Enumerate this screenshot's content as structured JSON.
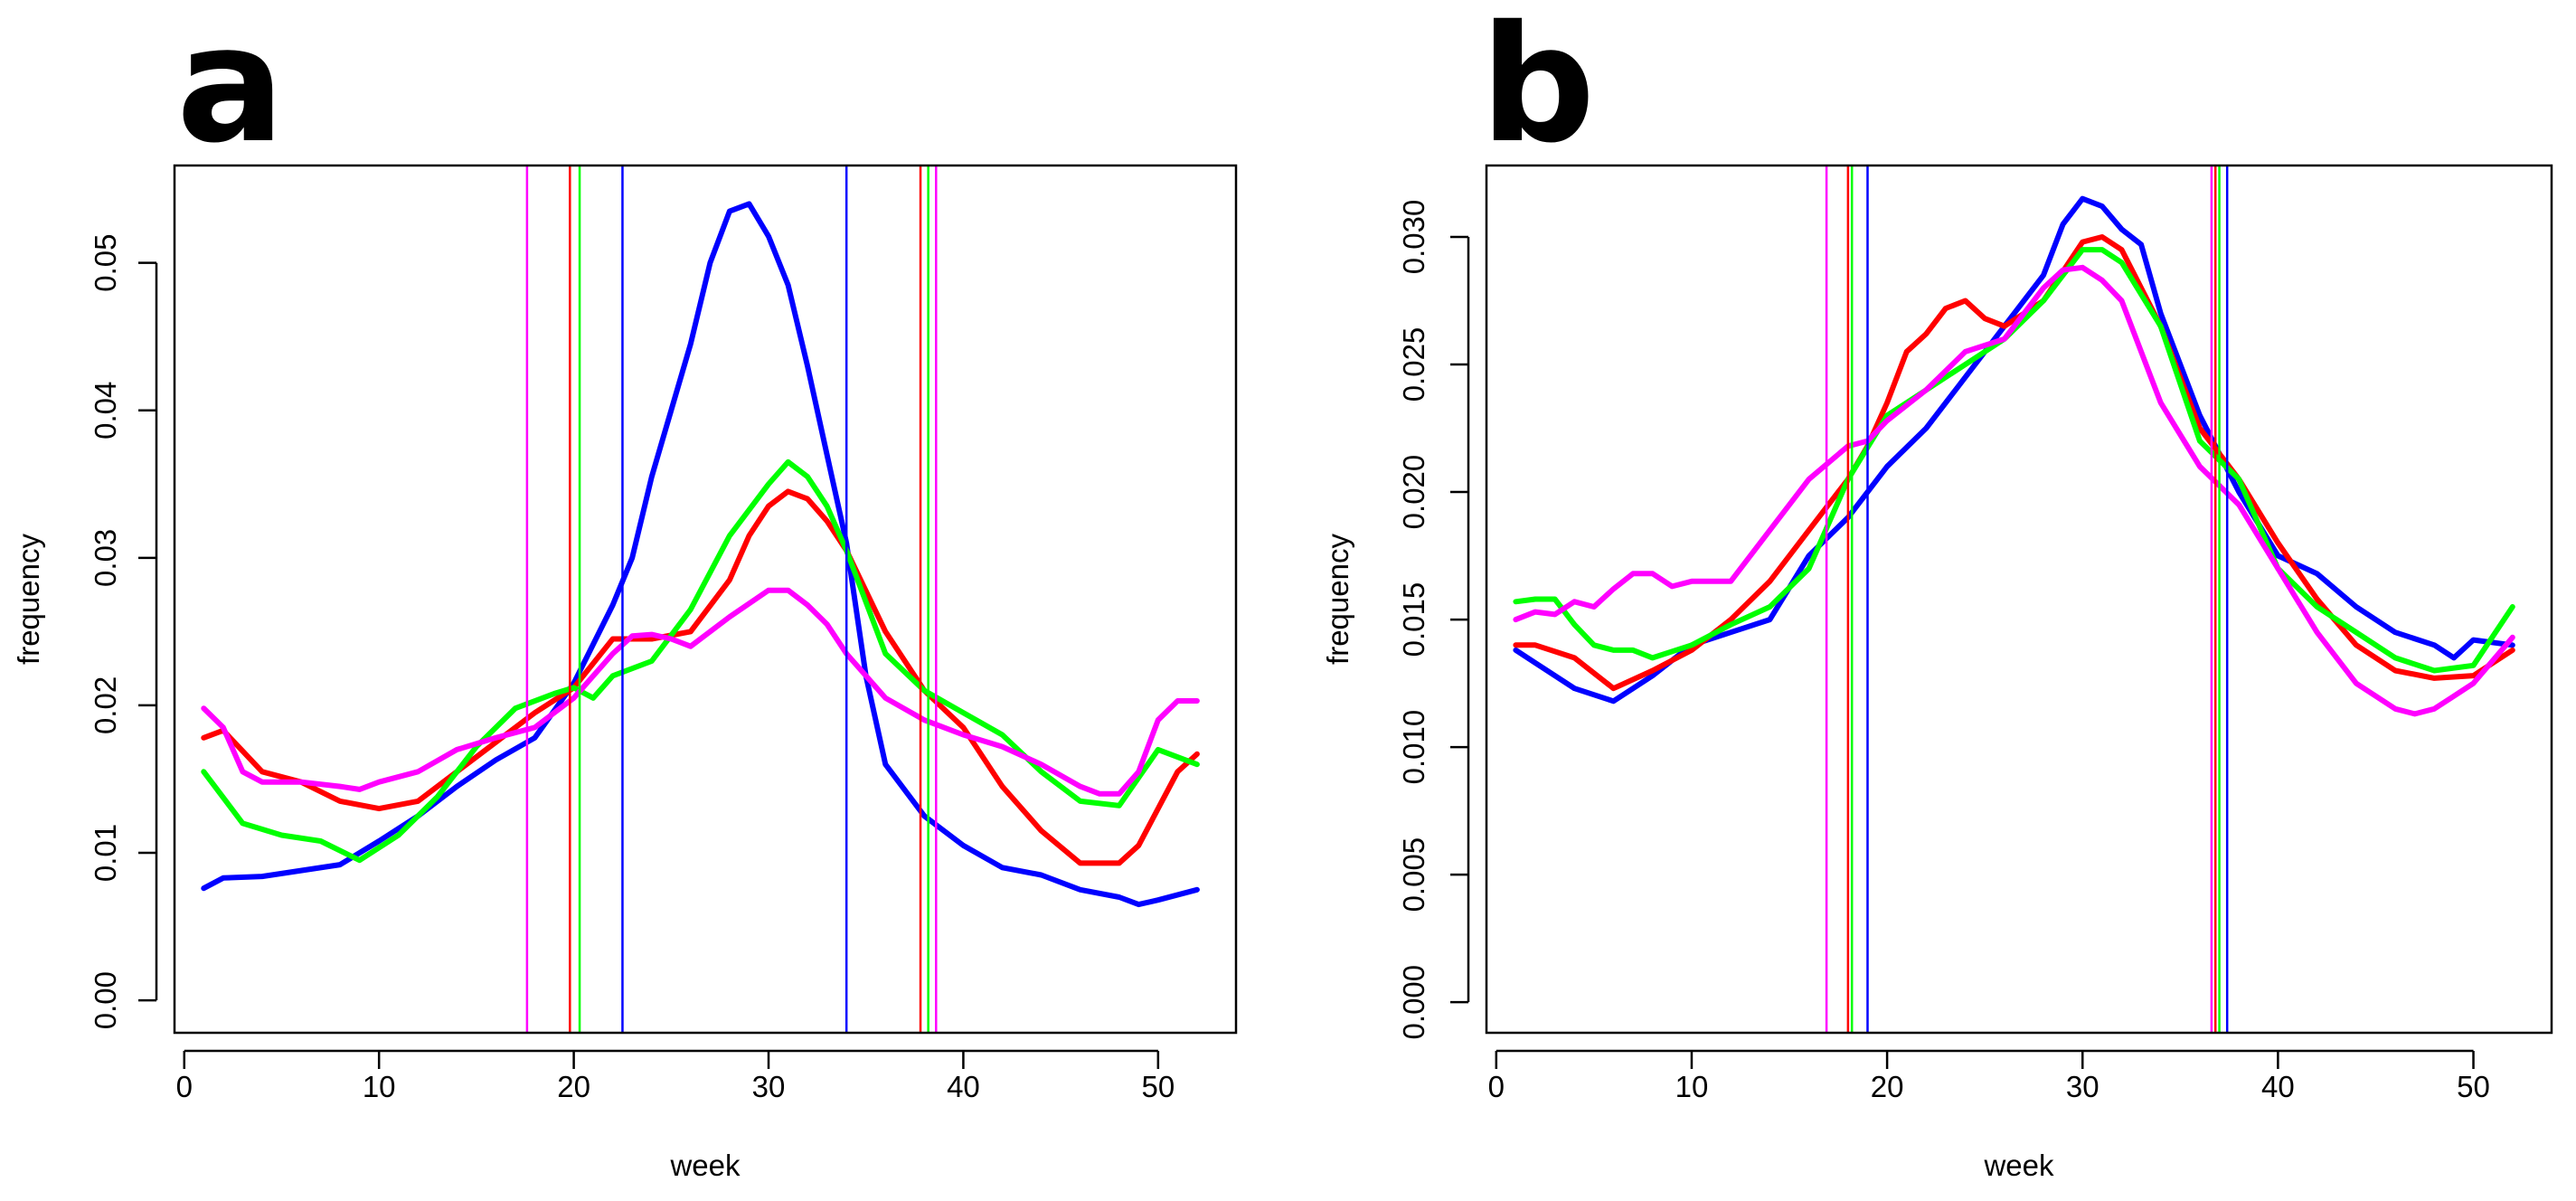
{
  "colors": {
    "blue": "#0000ff",
    "red": "#ff0000",
    "green": "#00ff00",
    "magenta": "#ff00ff"
  },
  "chart_data": [
    {
      "panel": "a",
      "type": "line",
      "xlabel": "week",
      "ylabel": "frequency",
      "xlim": [
        -0.5,
        54.0
      ],
      "ylim": [
        -0.0022,
        0.0566
      ],
      "xticks": [
        0,
        10,
        20,
        30,
        40,
        50
      ],
      "xtick_labels": [
        "0",
        "10",
        "20",
        "30",
        "40",
        "50"
      ],
      "yticks": [
        0.0,
        0.01,
        0.02,
        0.03,
        0.04,
        0.05
      ],
      "ytick_labels": [
        "0.00",
        "0.01",
        "0.02",
        "0.03",
        "0.04",
        "0.05"
      ],
      "series": [
        {
          "name": "blue",
          "color": "#0000ff",
          "x": [
            1,
            2,
            4,
            6,
            8,
            10,
            12,
            14,
            16,
            18,
            20,
            22,
            23,
            24,
            26,
            27,
            28,
            29,
            30,
            31,
            32,
            33,
            34,
            35,
            36,
            38,
            40,
            42,
            44,
            46,
            48,
            49,
            50,
            52
          ],
          "y": [
            0.0076,
            0.0083,
            0.0084,
            0.0088,
            0.0092,
            0.0108,
            0.0125,
            0.0145,
            0.0163,
            0.0178,
            0.0215,
            0.0268,
            0.03,
            0.0355,
            0.0445,
            0.05,
            0.0535,
            0.054,
            0.0518,
            0.0485,
            0.043,
            0.037,
            0.031,
            0.022,
            0.016,
            0.0125,
            0.0105,
            0.009,
            0.0085,
            0.0075,
            0.007,
            0.0065,
            0.0068,
            0.0075
          ],
          "vlines": [
            22.5,
            34.0
          ]
        },
        {
          "name": "red",
          "color": "#ff0000",
          "x": [
            1,
            2,
            4,
            6,
            8,
            10,
            12,
            14,
            16,
            18,
            20,
            22,
            24,
            26,
            28,
            29,
            30,
            31,
            32,
            33,
            34,
            36,
            38,
            40,
            42,
            44,
            46,
            48,
            49,
            50,
            51,
            52
          ],
          "y": [
            0.0178,
            0.0183,
            0.0155,
            0.0148,
            0.0135,
            0.013,
            0.0135,
            0.0155,
            0.0175,
            0.0195,
            0.0212,
            0.0245,
            0.0245,
            0.025,
            0.0285,
            0.0315,
            0.0335,
            0.0345,
            0.034,
            0.0325,
            0.0305,
            0.025,
            0.021,
            0.0185,
            0.0145,
            0.0115,
            0.0093,
            0.0093,
            0.0105,
            0.013,
            0.0155,
            0.0167
          ],
          "vlines": [
            19.8,
            37.8
          ]
        },
        {
          "name": "green",
          "color": "#00ff00",
          "x": [
            1,
            3,
            5,
            7,
            9,
            11,
            13,
            15,
            17,
            19,
            20,
            21,
            22,
            24,
            26,
            28,
            30,
            31,
            32,
            33,
            34,
            36,
            38,
            40,
            42,
            44,
            46,
            48,
            50,
            52
          ],
          "y": [
            0.0155,
            0.012,
            0.0112,
            0.0108,
            0.0095,
            0.0112,
            0.0138,
            0.0172,
            0.0198,
            0.0208,
            0.0212,
            0.0205,
            0.022,
            0.023,
            0.0265,
            0.0315,
            0.035,
            0.0365,
            0.0355,
            0.0335,
            0.0305,
            0.0235,
            0.021,
            0.0195,
            0.018,
            0.0155,
            0.0135,
            0.0132,
            0.017,
            0.016
          ],
          "vlines": [
            20.3,
            38.2
          ]
        },
        {
          "name": "magenta",
          "color": "#ff00ff",
          "x": [
            1,
            2,
            3,
            4,
            6,
            8,
            9,
            10,
            12,
            14,
            16,
            18,
            20,
            22,
            23,
            24,
            25,
            26,
            28,
            30,
            31,
            32,
            33,
            34,
            36,
            38,
            40,
            42,
            44,
            46,
            47,
            48,
            49,
            50,
            51,
            52
          ],
          "y": [
            0.0198,
            0.0185,
            0.0155,
            0.0148,
            0.0148,
            0.0145,
            0.0143,
            0.0148,
            0.0155,
            0.017,
            0.0178,
            0.0185,
            0.0205,
            0.0235,
            0.0247,
            0.0248,
            0.0245,
            0.024,
            0.026,
            0.0278,
            0.0278,
            0.0268,
            0.0255,
            0.0235,
            0.0205,
            0.019,
            0.018,
            0.0172,
            0.016,
            0.0145,
            0.014,
            0.014,
            0.0155,
            0.019,
            0.0203,
            0.0203
          ],
          "vlines": [
            17.6,
            38.6
          ]
        }
      ]
    },
    {
      "panel": "b",
      "type": "line",
      "xlabel": "week",
      "ylabel": "frequency",
      "xlim": [
        -0.5,
        54.0
      ],
      "ylim": [
        -0.0012,
        0.0328
      ],
      "xticks": [
        0,
        10,
        20,
        30,
        40,
        50
      ],
      "xtick_labels": [
        "0",
        "10",
        "20",
        "30",
        "40",
        "50"
      ],
      "yticks": [
        0.0,
        0.005,
        0.01,
        0.015,
        0.02,
        0.025,
        0.03
      ],
      "ytick_labels": [
        "0.000",
        "0.005",
        "0.010",
        "0.015",
        "0.020",
        "0.025",
        "0.030"
      ],
      "series": [
        {
          "name": "blue",
          "color": "#0000ff",
          "x": [
            1,
            2,
            4,
            6,
            8,
            10,
            12,
            14,
            16,
            18,
            20,
            22,
            24,
            26,
            28,
            29,
            30,
            31,
            32,
            33,
            34,
            36,
            38,
            40,
            42,
            44,
            46,
            48,
            49,
            50,
            52
          ],
          "y": [
            0.0138,
            0.0133,
            0.0123,
            0.0118,
            0.0128,
            0.014,
            0.0145,
            0.015,
            0.0175,
            0.019,
            0.021,
            0.0225,
            0.0245,
            0.0265,
            0.0285,
            0.0305,
            0.0315,
            0.0312,
            0.0303,
            0.0297,
            0.027,
            0.023,
            0.02,
            0.0175,
            0.0168,
            0.0155,
            0.0145,
            0.014,
            0.0135,
            0.0142,
            0.014
          ],
          "vlines": [
            19.0,
            37.4
          ]
        },
        {
          "name": "red",
          "color": "#ff0000",
          "x": [
            1,
            2,
            4,
            6,
            8,
            10,
            12,
            14,
            16,
            18,
            19,
            20,
            21,
            22,
            23,
            24,
            25,
            26,
            28,
            30,
            31,
            32,
            34,
            36,
            38,
            40,
            42,
            44,
            46,
            48,
            50,
            52
          ],
          "y": [
            0.014,
            0.014,
            0.0135,
            0.0123,
            0.013,
            0.0138,
            0.015,
            0.0165,
            0.0185,
            0.0205,
            0.0218,
            0.0235,
            0.0255,
            0.0262,
            0.0272,
            0.0275,
            0.0268,
            0.0265,
            0.0275,
            0.0298,
            0.03,
            0.0295,
            0.0265,
            0.0225,
            0.0205,
            0.018,
            0.0158,
            0.014,
            0.013,
            0.0127,
            0.0128,
            0.0138
          ],
          "vlines": [
            18.0,
            36.8
          ]
        },
        {
          "name": "green",
          "color": "#00ff00",
          "x": [
            1,
            2,
            3,
            4,
            5,
            6,
            7,
            8,
            10,
            12,
            14,
            16,
            18,
            20,
            22,
            24,
            26,
            28,
            30,
            31,
            32,
            34,
            36,
            38,
            40,
            42,
            44,
            46,
            48,
            50,
            52
          ],
          "y": [
            0.0157,
            0.0158,
            0.0158,
            0.0148,
            0.014,
            0.0138,
            0.0138,
            0.0135,
            0.014,
            0.0148,
            0.0155,
            0.017,
            0.0205,
            0.023,
            0.024,
            0.025,
            0.026,
            0.0275,
            0.0295,
            0.0295,
            0.029,
            0.0265,
            0.022,
            0.0205,
            0.017,
            0.0155,
            0.0145,
            0.0135,
            0.013,
            0.0132,
            0.0155
          ],
          "vlines": [
            18.2,
            37.0
          ]
        },
        {
          "name": "magenta",
          "color": "#ff00ff",
          "x": [
            1,
            2,
            3,
            4,
            5,
            6,
            7,
            8,
            9,
            10,
            12,
            14,
            16,
            18,
            19,
            20,
            22,
            24,
            26,
            28,
            29,
            30,
            31,
            32,
            34,
            36,
            38,
            40,
            42,
            44,
            46,
            47,
            48,
            49,
            50,
            52
          ],
          "y": [
            0.015,
            0.0153,
            0.0152,
            0.0157,
            0.0155,
            0.0162,
            0.0168,
            0.0168,
            0.0163,
            0.0165,
            0.0165,
            0.0185,
            0.0205,
            0.0218,
            0.022,
            0.0228,
            0.024,
            0.0255,
            0.026,
            0.028,
            0.0287,
            0.0288,
            0.0283,
            0.0275,
            0.0235,
            0.021,
            0.0195,
            0.017,
            0.0145,
            0.0125,
            0.0115,
            0.0113,
            0.0115,
            0.012,
            0.0125,
            0.0143
          ],
          "vlines": [
            16.9,
            36.6
          ]
        }
      ]
    }
  ]
}
